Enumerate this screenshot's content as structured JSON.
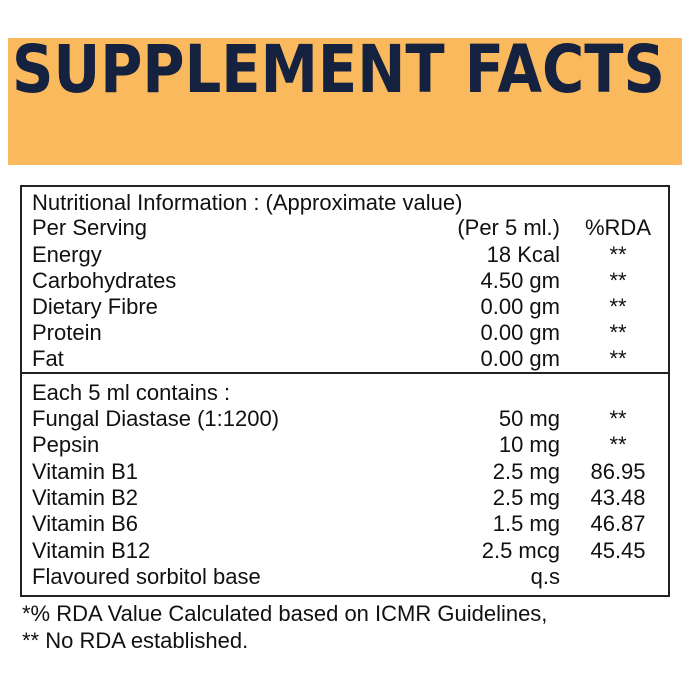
{
  "header": {
    "title": "SUPPLEMENT FACTS"
  },
  "table": {
    "intro": "Nutritional Information : (Approximate value)",
    "serving": [
      "Per Serving",
      "(Per 5 ml.)",
      "%RDA"
    ],
    "nutrition_rows": [
      [
        "Energy",
        "18 Kcal",
        "**"
      ],
      [
        "Carbohydrates",
        "4.50 gm",
        "**"
      ],
      [
        "Dietary Fibre",
        "0.00 gm",
        "**"
      ],
      [
        "Protein",
        "0.00 gm",
        "**"
      ],
      [
        "Fat",
        "0.00 gm",
        "**"
      ]
    ],
    "contents_heading": "Each 5 ml contains :",
    "contents_rows": [
      [
        "Fungal Diastase (1:1200)",
        "50 mg",
        "**"
      ],
      [
        "Pepsin",
        "10 mg",
        "**"
      ],
      [
        "Vitamin B1",
        "2.5 mg",
        "86.95"
      ],
      [
        "Vitamin B2",
        "2.5 mg",
        "43.48"
      ],
      [
        "Vitamin B6",
        "1.5 mg",
        "46.87"
      ],
      [
        "Vitamin B12",
        "2.5 mcg",
        "45.45"
      ],
      [
        "Flavoured sorbitol base",
        "q.s"
      ]
    ]
  },
  "footnotes": [
    "*% RDA Value Calculated based on ICMR Guidelines,",
    "** No RDA established."
  ]
}
